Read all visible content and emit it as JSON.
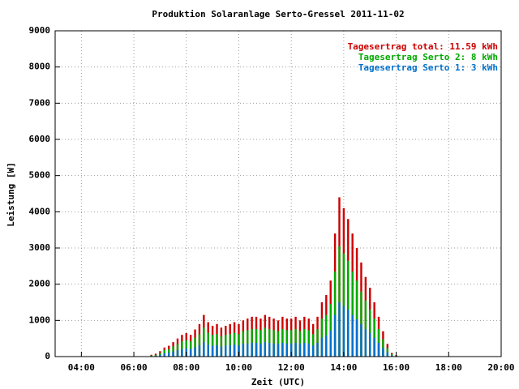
{
  "chart_data": {
    "type": "impulse",
    "title": "Produktion Solaranlage Serto-Gressel 2011-11-02",
    "xlabel": "Zeit (UTC)",
    "ylabel": "Leistung [W]",
    "x": [
      "06:40",
      "06:50",
      "07:00",
      "07:10",
      "07:20",
      "07:30",
      "07:40",
      "07:50",
      "08:00",
      "08:10",
      "08:20",
      "08:30",
      "08:40",
      "08:50",
      "09:00",
      "09:10",
      "09:20",
      "09:30",
      "09:40",
      "09:50",
      "10:00",
      "10:10",
      "10:20",
      "10:30",
      "10:40",
      "10:50",
      "11:00",
      "11:10",
      "11:20",
      "11:30",
      "11:40",
      "11:50",
      "12:00",
      "12:10",
      "12:20",
      "12:30",
      "12:40",
      "12:50",
      "13:00",
      "13:10",
      "13:20",
      "13:30",
      "13:40",
      "13:50",
      "14:00",
      "14:10",
      "14:20",
      "14:30",
      "14:40",
      "14:50",
      "15:00",
      "15:10",
      "15:20",
      "15:30",
      "15:40",
      "15:50",
      "16:00"
    ],
    "series": [
      {
        "name": "Tagesertrag total: 11.59 kWh",
        "color": "#cc0000",
        "values": [
          50,
          80,
          150,
          250,
          300,
          400,
          500,
          600,
          650,
          600,
          750,
          900,
          1150,
          950,
          850,
          900,
          800,
          850,
          900,
          950,
          900,
          1000,
          1050,
          1100,
          1100,
          1050,
          1150,
          1100,
          1050,
          1000,
          1100,
          1050,
          1050,
          1100,
          1000,
          1100,
          1050,
          900,
          1100,
          1500,
          1700,
          2100,
          3400,
          4400,
          4100,
          3800,
          3400,
          3000,
          2600,
          2200,
          1900,
          1500,
          1100,
          700,
          350,
          100,
          40
        ]
      },
      {
        "name": "Tagesertrag Serto 2: 8 kWh",
        "color": "#00aa00",
        "values": [
          30,
          50,
          100,
          180,
          200,
          280,
          350,
          420,
          450,
          420,
          520,
          620,
          800,
          660,
          600,
          620,
          560,
          600,
          620,
          660,
          620,
          700,
          730,
          760,
          760,
          730,
          800,
          760,
          730,
          700,
          760,
          730,
          730,
          760,
          700,
          760,
          730,
          620,
          760,
          1050,
          1150,
          1450,
          2350,
          3050,
          2850,
          2650,
          2350,
          2100,
          1800,
          1550,
          1300,
          1050,
          760,
          480,
          240,
          70,
          25
        ]
      },
      {
        "name": "Tagesertrag Serto 1: 3 kWh",
        "color": "#0070cc",
        "values": [
          15,
          25,
          50,
          90,
          110,
          140,
          180,
          210,
          230,
          210,
          260,
          310,
          400,
          330,
          300,
          310,
          280,
          300,
          310,
          330,
          310,
          350,
          360,
          380,
          380,
          360,
          400,
          380,
          360,
          350,
          380,
          360,
          360,
          380,
          350,
          380,
          360,
          310,
          380,
          520,
          580,
          720,
          1150,
          1500,
          1400,
          1300,
          1150,
          1030,
          900,
          760,
          650,
          520,
          380,
          240,
          120,
          35,
          12
        ]
      }
    ],
    "xlim": [
      "03:00",
      "20:00"
    ],
    "xticks": [
      "04:00",
      "06:00",
      "08:00",
      "10:00",
      "12:00",
      "14:00",
      "16:00",
      "18:00",
      "20:00"
    ],
    "ylim": [
      0,
      9000
    ],
    "yticks": [
      0,
      1000,
      2000,
      3000,
      4000,
      5000,
      6000,
      7000,
      8000,
      9000
    ],
    "grid": true,
    "legend": "top-right"
  }
}
